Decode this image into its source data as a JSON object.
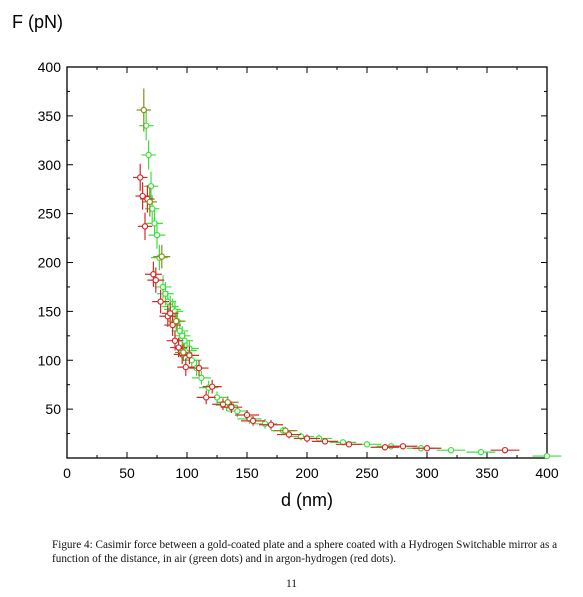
{
  "figure": {
    "caption_label": "Figure 4:",
    "caption_text": "Casimir force between a gold-coated plate and a sphere coated with a Hydrogen Switchable mirror as a function of the distance, in air (green dots) and in argon-hydrogen (red dots)."
  },
  "page_number": "11",
  "chart_data": {
    "type": "scatter",
    "xlabel": "d (nm)",
    "ylabel": "F (pN)",
    "xlim": [
      0,
      400
    ],
    "ylim": [
      0,
      400
    ],
    "xticks": [
      0,
      50,
      100,
      150,
      200,
      250,
      300,
      350,
      400
    ],
    "yticks": [
      50,
      100,
      150,
      200,
      250,
      300,
      350,
      400
    ],
    "grid": false,
    "error_bars": true,
    "series": [
      {
        "color": "#3ee03e",
        "x": [
          66,
          68,
          70,
          71,
          73,
          75,
          77,
          80,
          82,
          84,
          86,
          88,
          90,
          92,
          94,
          96,
          98,
          100,
          102,
          104,
          108,
          112,
          118,
          125,
          133,
          142,
          152,
          165,
          180,
          195,
          210,
          230,
          250,
          270,
          295,
          320,
          345,
          400
        ],
        "y": [
          340,
          310,
          278,
          255,
          240,
          228,
          205,
          175,
          168,
          160,
          155,
          152,
          150,
          140,
          130,
          125,
          120,
          110,
          112,
          100,
          92,
          82,
          72,
          62,
          54,
          48,
          40,
          35,
          28,
          22,
          20,
          16,
          14,
          12,
          10,
          8,
          6,
          2
        ],
        "xerr": [
          6,
          6,
          6,
          6,
          7,
          7,
          7,
          7,
          7,
          7,
          7,
          7,
          7,
          7,
          7,
          7,
          7,
          8,
          8,
          8,
          8,
          8,
          8,
          9,
          9,
          9,
          10,
          10,
          10,
          11,
          11,
          11,
          12,
          12,
          12,
          12,
          12,
          12
        ],
        "yerr": [
          15,
          15,
          15,
          14,
          14,
          14,
          13,
          12,
          12,
          11,
          11,
          11,
          11,
          10,
          10,
          10,
          9,
          9,
          9,
          8,
          8,
          7,
          7,
          6,
          6,
          6,
          5,
          5,
          4,
          4,
          4,
          3,
          3,
          3,
          3,
          2,
          2,
          2
        ]
      },
      {
        "color": "#d42a2a",
        "x": [
          61,
          63,
          65,
          67,
          72,
          74,
          78,
          84,
          86,
          88,
          90,
          93,
          96,
          99,
          102,
          110,
          116,
          121,
          130,
          137,
          150,
          155,
          170,
          185,
          200,
          215,
          235,
          265,
          280,
          300,
          365
        ],
        "y": [
          287,
          268,
          237,
          265,
          188,
          182,
          160,
          145,
          148,
          136,
          120,
          113,
          106,
          93,
          105,
          92,
          62,
          73,
          55,
          52,
          44,
          38,
          34,
          24,
          20,
          17,
          14,
          11,
          12,
          10,
          8
        ],
        "xerr": [
          6,
          6,
          6,
          6,
          7,
          7,
          7,
          7,
          7,
          7,
          7,
          7,
          7,
          7,
          8,
          8,
          8,
          8,
          9,
          9,
          10,
          10,
          10,
          10,
          11,
          11,
          11,
          12,
          12,
          12,
          12
        ],
        "yerr": [
          14,
          14,
          14,
          14,
          13,
          13,
          12,
          11,
          11,
          11,
          10,
          10,
          10,
          9,
          9,
          8,
          7,
          7,
          6,
          6,
          5,
          5,
          5,
          4,
          4,
          3,
          3,
          3,
          3,
          3,
          2
        ]
      },
      {
        "color": "#8a8a1e",
        "x": [
          64,
          69,
          79,
          91,
          97,
          134,
          182
        ],
        "y": [
          356,
          262,
          206,
          140,
          108,
          57,
          28
        ],
        "xerr": [
          6,
          6,
          7,
          7,
          7,
          9,
          10
        ],
        "yerr": [
          22,
          15,
          12,
          10,
          9,
          6,
          4
        ]
      }
    ]
  }
}
